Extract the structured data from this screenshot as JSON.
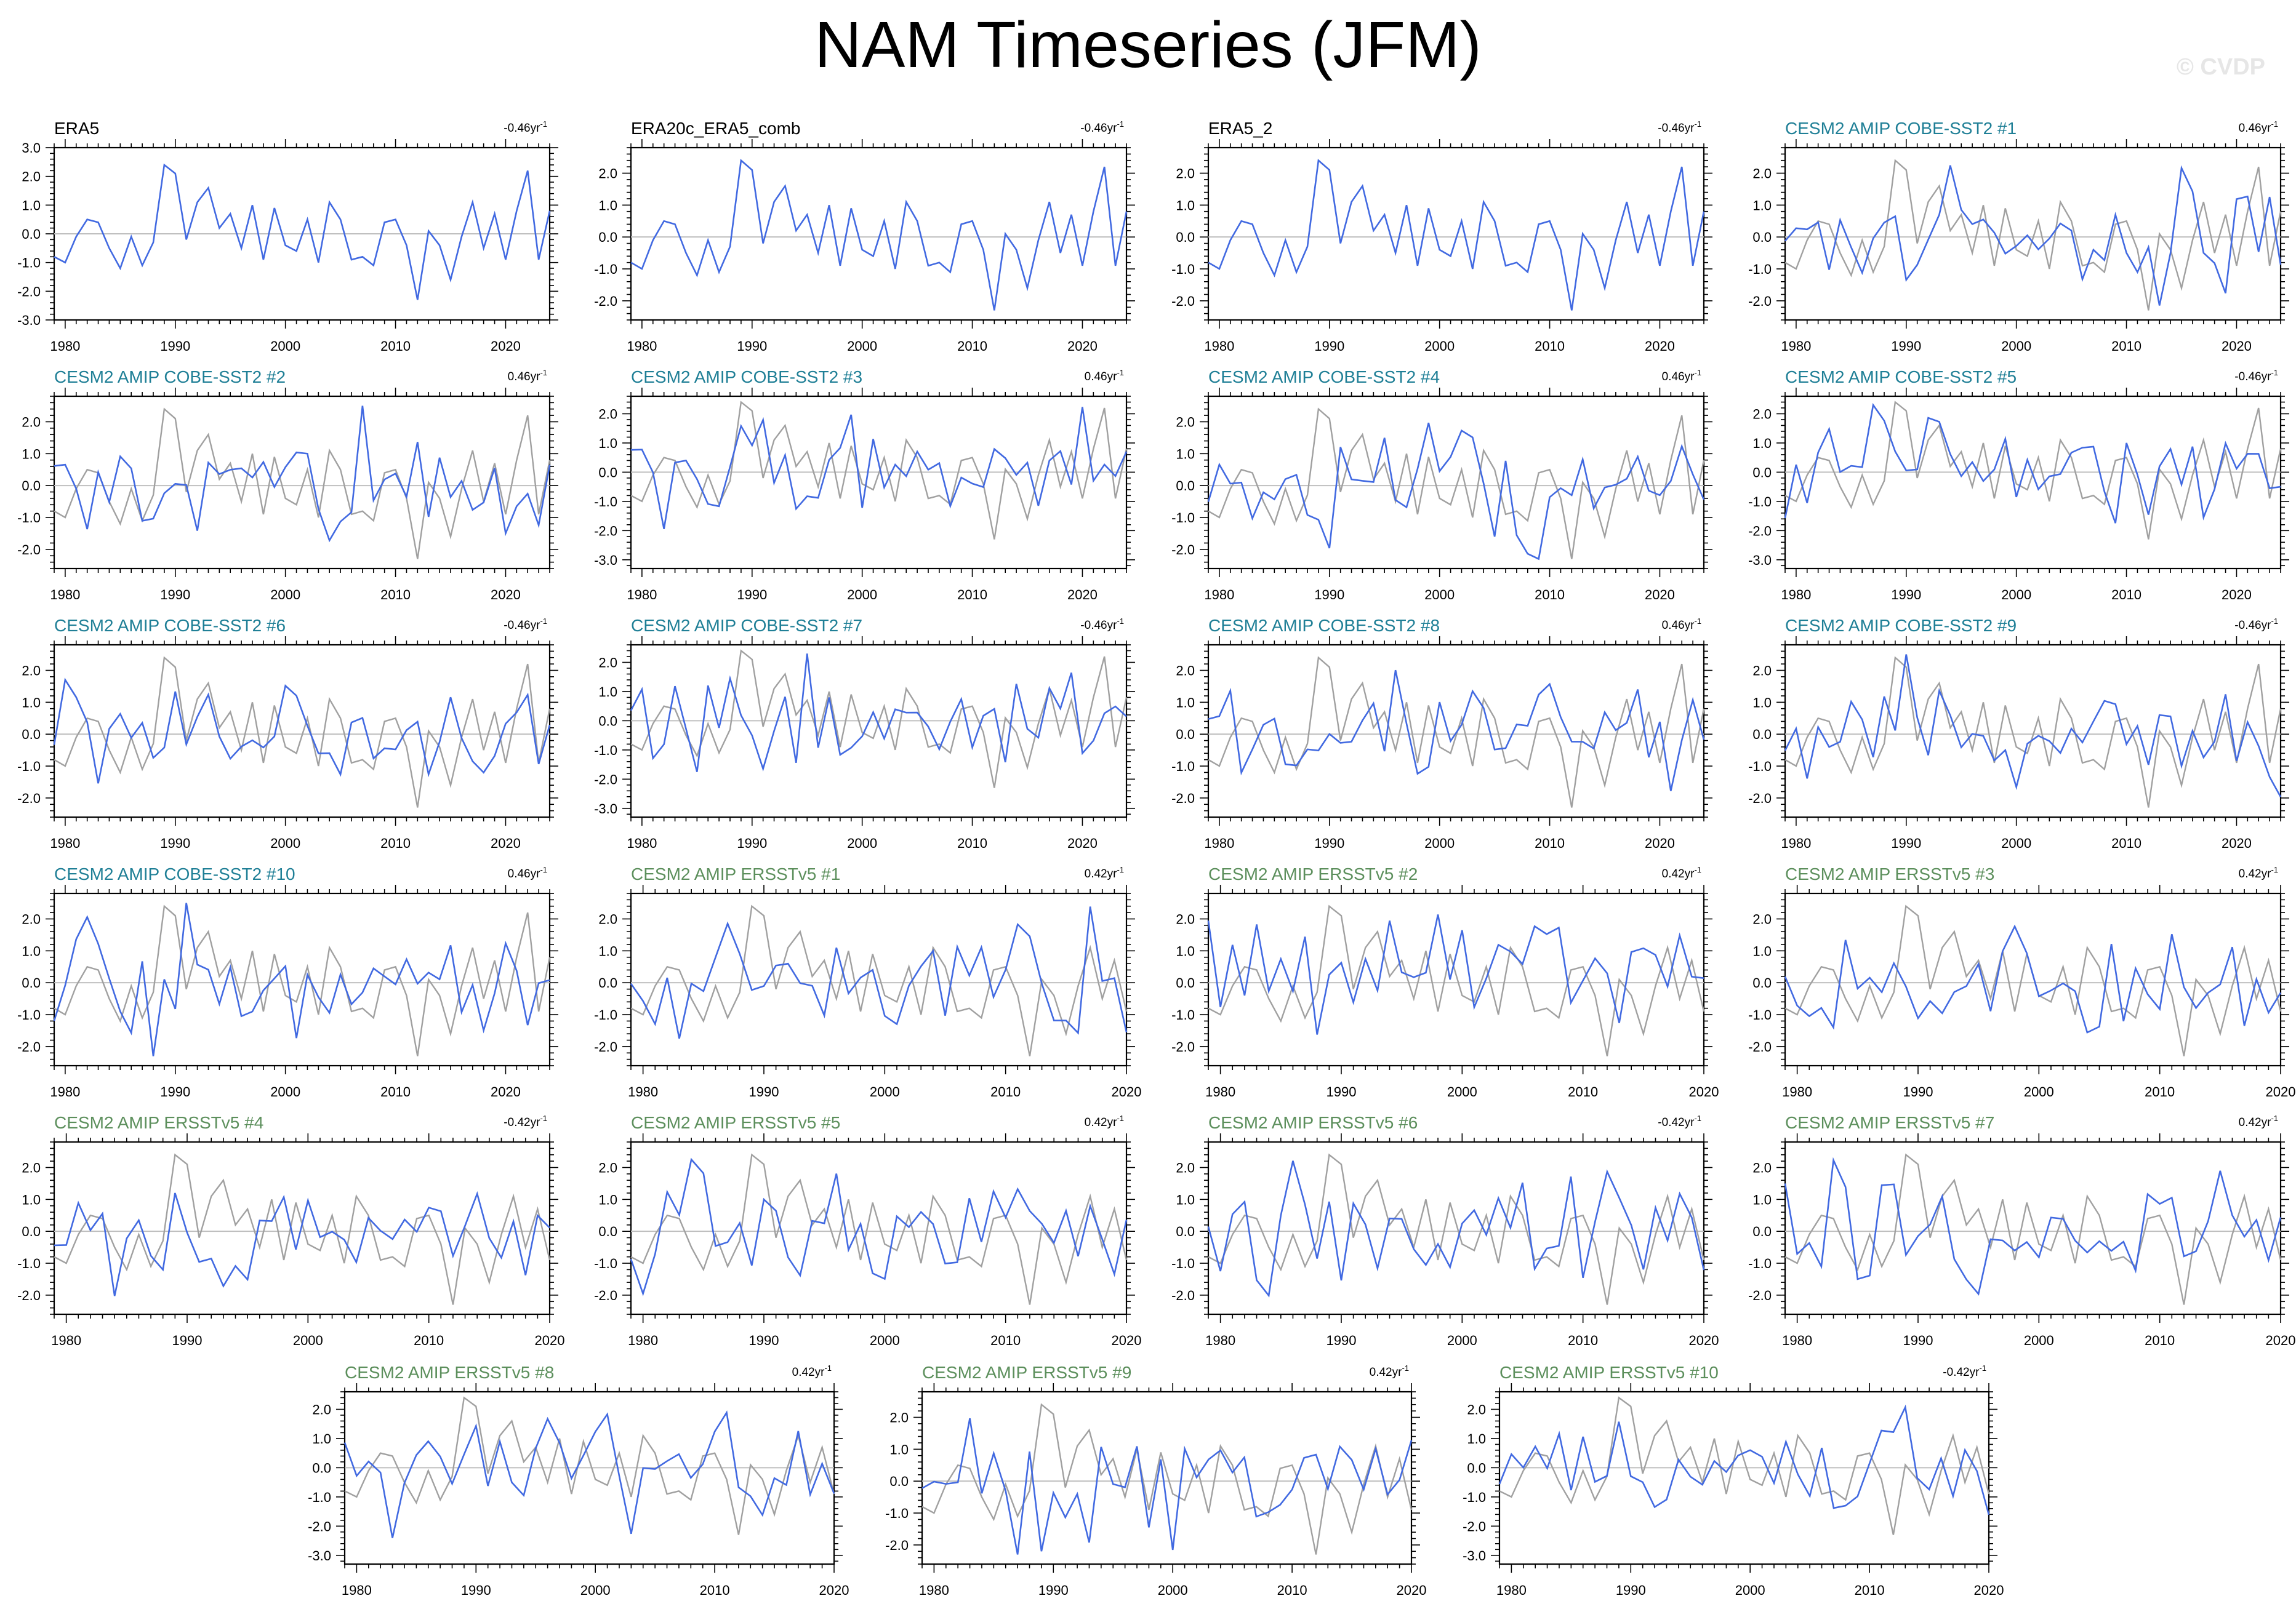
{
  "title": "NAM Timeseries (JFM)",
  "watermark": "© CVDP",
  "colors": {
    "model": "#4169e1",
    "obs_ref": "#a0a0a0",
    "obs_title": "#000000",
    "cobe_title": "#1f7f96",
    "ersst_title": "#5c8f5c",
    "zero_line": "#bfbfbf"
  },
  "chart_data": [
    {
      "type": "line",
      "title": "ERA5",
      "group": "obs",
      "trend": "-0.46",
      "trend_unit": "yr",
      "ylim": [
        -3,
        3
      ],
      "yticks": [
        -3,
        -2,
        -1,
        0,
        1,
        2,
        3
      ],
      "xlim": [
        1979,
        2024
      ],
      "xticks": [
        1980,
        1990,
        2000,
        2010,
        2020
      ],
      "series": []
    },
    {
      "type": "line",
      "title": "ERA20c_ERA5_comb",
      "group": "obs",
      "trend": "-0.46",
      "trend_unit": "yr",
      "ylim": [
        -2.6,
        2.8
      ],
      "yticks": [
        -2,
        -1,
        0,
        1,
        2
      ],
      "xlim": [
        1979,
        2024
      ],
      "xticks": [
        1980,
        1990,
        2000,
        2010,
        2020
      ],
      "series": []
    },
    {
      "type": "line",
      "title": "ERA5_2",
      "group": "obs",
      "trend": "-0.46",
      "trend_unit": "yr",
      "ylim": [
        -2.6,
        2.8
      ],
      "yticks": [
        -2,
        -1,
        0,
        1,
        2
      ],
      "xlim": [
        1979,
        2024
      ],
      "xticks": [
        1980,
        1990,
        2000,
        2010,
        2020
      ],
      "series": []
    },
    {
      "type": "line",
      "title": "CESM2 AMIP COBE-SST2 #1",
      "group": "cobe",
      "trend": "0.46",
      "trend_unit": "yr",
      "ylim": [
        -2.6,
        2.8
      ],
      "yticks": [
        -2,
        -1,
        0,
        1,
        2
      ],
      "xlim": [
        1979,
        2024
      ],
      "xticks": [
        1980,
        1990,
        2000,
        2010,
        2020
      ],
      "seed": 11
    },
    {
      "type": "line",
      "title": "CESM2 AMIP COBE-SST2 #2",
      "group": "cobe",
      "trend": "0.46",
      "trend_unit": "yr",
      "ylim": [
        -2.6,
        2.8
      ],
      "yticks": [
        -2,
        -1,
        0,
        1,
        2
      ],
      "xlim": [
        1979,
        2024
      ],
      "xticks": [
        1980,
        1990,
        2000,
        2010,
        2020
      ],
      "seed": 12
    },
    {
      "type": "line",
      "title": "CESM2 AMIP COBE-SST2 #3",
      "group": "cobe",
      "trend": "0.46",
      "trend_unit": "yr",
      "ylim": [
        -3.3,
        2.6
      ],
      "yticks": [
        -3,
        -2,
        -1,
        0,
        1,
        2
      ],
      "xlim": [
        1979,
        2024
      ],
      "xticks": [
        1980,
        1990,
        2000,
        2010,
        2020
      ],
      "seed": 13
    },
    {
      "type": "line",
      "title": "CESM2 AMIP COBE-SST2 #4",
      "group": "cobe",
      "trend": "0.46",
      "trend_unit": "yr",
      "ylim": [
        -2.6,
        2.8
      ],
      "yticks": [
        -2,
        -1,
        0,
        1,
        2
      ],
      "xlim": [
        1979,
        2024
      ],
      "xticks": [
        1980,
        1990,
        2000,
        2010,
        2020
      ],
      "seed": 14
    },
    {
      "type": "line",
      "title": "CESM2 AMIP COBE-SST2 #5",
      "group": "cobe",
      "trend": "-0.46",
      "trend_unit": "yr",
      "ylim": [
        -3.3,
        2.6
      ],
      "yticks": [
        -3,
        -2,
        -1,
        0,
        1,
        2
      ],
      "xlim": [
        1979,
        2024
      ],
      "xticks": [
        1980,
        1990,
        2000,
        2010,
        2020
      ],
      "seed": 15
    },
    {
      "type": "line",
      "title": "CESM2 AMIP COBE-SST2 #6",
      "group": "cobe",
      "trend": "-0.46",
      "trend_unit": "yr",
      "ylim": [
        -2.6,
        2.8
      ],
      "yticks": [
        -2,
        -1,
        0,
        1,
        2
      ],
      "xlim": [
        1979,
        2024
      ],
      "xticks": [
        1980,
        1990,
        2000,
        2010,
        2020
      ],
      "seed": 16
    },
    {
      "type": "line",
      "title": "CESM2 AMIP COBE-SST2 #7",
      "group": "cobe",
      "trend": "-0.46",
      "trend_unit": "yr",
      "ylim": [
        -3.3,
        2.6
      ],
      "yticks": [
        -3,
        -2,
        -1,
        0,
        1,
        2
      ],
      "xlim": [
        1979,
        2024
      ],
      "xticks": [
        1980,
        1990,
        2000,
        2010,
        2020
      ],
      "seed": 17
    },
    {
      "type": "line",
      "title": "CESM2 AMIP COBE-SST2 #8",
      "group": "cobe",
      "trend": "0.46",
      "trend_unit": "yr",
      "ylim": [
        -2.6,
        2.8
      ],
      "yticks": [
        -2,
        -1,
        0,
        1,
        2
      ],
      "xlim": [
        1979,
        2024
      ],
      "xticks": [
        1980,
        1990,
        2000,
        2010,
        2020
      ],
      "seed": 18
    },
    {
      "type": "line",
      "title": "CESM2 AMIP COBE-SST2 #9",
      "group": "cobe",
      "trend": "-0.46",
      "trend_unit": "yr",
      "ylim": [
        -2.6,
        2.8
      ],
      "yticks": [
        -2,
        -1,
        0,
        1,
        2
      ],
      "xlim": [
        1979,
        2024
      ],
      "xticks": [
        1980,
        1990,
        2000,
        2010,
        2020
      ],
      "seed": 19
    },
    {
      "type": "line",
      "title": "CESM2 AMIP COBE-SST2 #10",
      "group": "cobe",
      "trend": "0.46",
      "trend_unit": "yr",
      "ylim": [
        -2.6,
        2.8
      ],
      "yticks": [
        -2,
        -1,
        0,
        1,
        2
      ],
      "xlim": [
        1979,
        2024
      ],
      "xticks": [
        1980,
        1990,
        2000,
        2010,
        2020
      ],
      "seed": 20
    },
    {
      "type": "line",
      "title": "CESM2 AMIP ERSSTv5 #1",
      "group": "ersst",
      "trend": "0.42",
      "trend_unit": "yr",
      "ylim": [
        -2.6,
        2.8
      ],
      "yticks": [
        -2,
        -1,
        0,
        1,
        2
      ],
      "xlim": [
        1979,
        2020
      ],
      "xticks": [
        1980,
        1990,
        2000,
        2010,
        2020
      ],
      "seed": 21
    },
    {
      "type": "line",
      "title": "CESM2 AMIP ERSSTv5 #2",
      "group": "ersst",
      "trend": "0.42",
      "trend_unit": "yr",
      "ylim": [
        -2.6,
        2.8
      ],
      "yticks": [
        -2,
        -1,
        0,
        1,
        2
      ],
      "xlim": [
        1979,
        2020
      ],
      "xticks": [
        1980,
        1990,
        2000,
        2010,
        2020
      ],
      "seed": 22
    },
    {
      "type": "line",
      "title": "CESM2 AMIP ERSSTv5 #3",
      "group": "ersst",
      "trend": "0.42",
      "trend_unit": "yr",
      "ylim": [
        -2.6,
        2.8
      ],
      "yticks": [
        -2,
        -1,
        0,
        1,
        2
      ],
      "xlim": [
        1979,
        2020
      ],
      "xticks": [
        1980,
        1990,
        2000,
        2010,
        2020
      ],
      "seed": 23
    },
    {
      "type": "line",
      "title": "CESM2 AMIP ERSSTv5 #4",
      "group": "ersst",
      "trend": "-0.42",
      "trend_unit": "yr",
      "ylim": [
        -2.6,
        2.8
      ],
      "yticks": [
        -2,
        -1,
        0,
        1,
        2
      ],
      "xlim": [
        1979,
        2020
      ],
      "xticks": [
        1980,
        1990,
        2000,
        2010,
        2020
      ],
      "seed": 24
    },
    {
      "type": "line",
      "title": "CESM2 AMIP ERSSTv5 #5",
      "group": "ersst",
      "trend": "0.42",
      "trend_unit": "yr",
      "ylim": [
        -2.6,
        2.8
      ],
      "yticks": [
        -2,
        -1,
        0,
        1,
        2
      ],
      "xlim": [
        1979,
        2020
      ],
      "xticks": [
        1980,
        1990,
        2000,
        2010,
        2020
      ],
      "seed": 25
    },
    {
      "type": "line",
      "title": "CESM2 AMIP ERSSTv5 #6",
      "group": "ersst",
      "trend": "-0.42",
      "trend_unit": "yr",
      "ylim": [
        -2.6,
        2.8
      ],
      "yticks": [
        -2,
        -1,
        0,
        1,
        2
      ],
      "xlim": [
        1979,
        2020
      ],
      "xticks": [
        1980,
        1990,
        2000,
        2010,
        2020
      ],
      "seed": 26
    },
    {
      "type": "line",
      "title": "CESM2 AMIP ERSSTv5 #7",
      "group": "ersst",
      "trend": "0.42",
      "trend_unit": "yr",
      "ylim": [
        -2.6,
        2.8
      ],
      "yticks": [
        -2,
        -1,
        0,
        1,
        2
      ],
      "xlim": [
        1979,
        2020
      ],
      "xticks": [
        1980,
        1990,
        2000,
        2010,
        2020
      ],
      "seed": 27
    },
    {
      "type": "line",
      "title": "CESM2 AMIP ERSSTv5 #8",
      "group": "ersst",
      "trend": "0.42",
      "trend_unit": "yr",
      "ylim": [
        -3.3,
        2.6
      ],
      "yticks": [
        -3,
        -2,
        -1,
        0,
        1,
        2
      ],
      "xlim": [
        1979,
        2020
      ],
      "xticks": [
        1980,
        1990,
        2000,
        2010,
        2020
      ],
      "seed": 28
    },
    {
      "type": "line",
      "title": "CESM2 AMIP ERSSTv5 #9",
      "group": "ersst",
      "trend": "0.42",
      "trend_unit": "yr",
      "ylim": [
        -2.6,
        2.8
      ],
      "yticks": [
        -2,
        -1,
        0,
        1,
        2
      ],
      "xlim": [
        1979,
        2020
      ],
      "xticks": [
        1980,
        1990,
        2000,
        2010,
        2020
      ],
      "seed": 29
    },
    {
      "type": "line",
      "title": "CESM2 AMIP ERSSTv5 #10",
      "group": "ersst",
      "trend": "-0.42",
      "trend_unit": "yr",
      "ylim": [
        -3.3,
        2.6
      ],
      "yticks": [
        -3,
        -2,
        -1,
        0,
        1,
        2
      ],
      "xlim": [
        1979,
        2020
      ],
      "xticks": [
        1980,
        1990,
        2000,
        2010,
        2020
      ],
      "seed": 30
    }
  ],
  "obs_series": {
    "start_year": 1979,
    "values": [
      -0.8,
      -1.0,
      -0.1,
      0.5,
      0.4,
      -0.5,
      -1.2,
      -0.1,
      -1.1,
      -0.3,
      2.4,
      2.1,
      -0.2,
      1.1,
      1.6,
      0.2,
      0.7,
      -0.5,
      1.0,
      -0.9,
      0.9,
      -0.4,
      -0.6,
      0.5,
      -1.0,
      1.1,
      0.5,
      -0.9,
      -0.8,
      -1.1,
      0.4,
      0.5,
      -0.4,
      -2.3,
      0.1,
      -0.4,
      -1.6,
      -0.1,
      1.1,
      -0.5,
      0.7,
      -0.9,
      0.8,
      2.2,
      -0.9,
      0.8,
      0.1,
      -0.1
    ]
  }
}
